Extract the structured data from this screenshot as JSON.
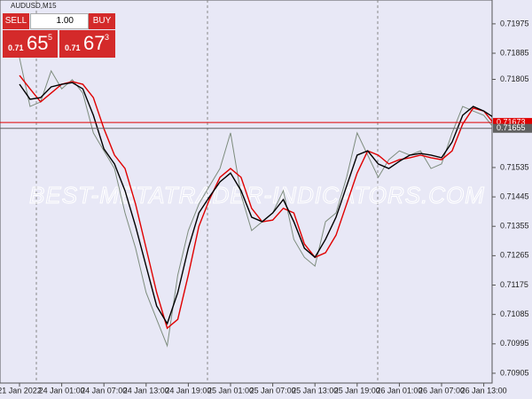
{
  "chart_data": {
    "type": "line",
    "title": "AUDUSD,M15",
    "categories": [
      "21 Jan 2022",
      null,
      null,
      null,
      "24 Jan 01:00",
      null,
      null,
      null,
      "24 Jan 07:00",
      null,
      null,
      null,
      "24 Jan 13:00",
      null,
      null,
      null,
      "24 Jan 19:00",
      null,
      null,
      null,
      "25 Jan 01:00",
      null,
      null,
      null,
      "25 Jan 07:00",
      null,
      null,
      null,
      "25 Jan 13:00",
      null,
      null,
      null,
      "25 Jan 19:00",
      null,
      null,
      null,
      "26 Jan 01:00",
      null,
      null,
      null,
      "26 Jan 07:00",
      null,
      null,
      null,
      "26 Jan 13:00",
      null
    ],
    "series": [
      {
        "color": "#7d8c7d",
        "values": [
          0.71871,
          0.71722,
          0.71736,
          0.71831,
          0.71776,
          0.71804,
          0.71763,
          0.71641,
          0.71586,
          0.71532,
          0.71396,
          0.71288,
          0.71152,
          0.7107,
          0.70989,
          0.71206,
          0.71342,
          0.71423,
          0.71478,
          0.71532,
          0.71641,
          0.71451,
          0.71342,
          0.71369,
          0.71396,
          0.71464,
          0.71315,
          0.7126,
          0.71233,
          0.71369,
          0.71396,
          0.71505,
          0.71641,
          0.71573,
          0.71505,
          0.71559,
          0.71586,
          0.71573,
          0.71586,
          0.71532,
          0.71546,
          0.71641,
          0.71722,
          0.71708,
          0.71695,
          0.71654
        ]
      },
      {
        "color": "#e00000",
        "values": [
          0.71817,
          0.71776,
          0.71736,
          0.71763,
          0.7179,
          0.71798,
          0.7179,
          0.71749,
          0.71654,
          0.71573,
          0.71532,
          0.71423,
          0.71288,
          0.71152,
          0.71043,
          0.7107,
          0.71206,
          0.71355,
          0.71437,
          0.71505,
          0.71532,
          0.71505,
          0.7141,
          0.71369,
          0.71374,
          0.7141,
          0.71396,
          0.71301,
          0.7126,
          0.71274,
          0.71328,
          0.71423,
          0.71518,
          0.71586,
          0.71573,
          0.71546,
          0.71559,
          0.71565,
          0.71573,
          0.71565,
          0.71559,
          0.71586,
          0.71668,
          0.71717,
          0.71708,
          0.71668
        ]
      },
      {
        "color": "#000000",
        "values": [
          0.7179,
          0.71744,
          0.71749,
          0.71782,
          0.7179,
          0.71795,
          0.71776,
          0.71695,
          0.71592,
          0.71546,
          0.71464,
          0.71355,
          0.71233,
          0.71111,
          0.71057,
          0.71152,
          0.71288,
          0.71396,
          0.71445,
          0.71491,
          0.71518,
          0.71464,
          0.71383,
          0.71369,
          0.71396,
          0.71437,
          0.71369,
          0.71288,
          0.7126,
          0.71315,
          0.71383,
          0.71478,
          0.71573,
          0.71586,
          0.71546,
          0.71532,
          0.71554,
          0.71573,
          0.71578,
          0.71573,
          0.71565,
          0.71613,
          0.71695,
          0.71722,
          0.71708,
          0.71687
        ]
      }
    ],
    "hlines": [
      {
        "value": 0.71673,
        "color": "#e00000"
      },
      {
        "value": 0.71655,
        "color": "#606060"
      }
    ],
    "ylim": [
      0.70875,
      0.72048
    ],
    "yticks": [
      0.71975,
      0.71885,
      0.71805,
      0.71535,
      0.71445,
      0.71355,
      0.71265,
      0.71175,
      0.71085,
      0.70995,
      0.70905
    ]
  },
  "trade_panel": {
    "sell": "SELL",
    "lot": "1.00",
    "buy": "BUY",
    "bid": {
      "big": "0.71",
      "pips": "65",
      "point": "5"
    },
    "ask": {
      "big": "0.71",
      "pips": "67",
      "point": "3"
    }
  },
  "watermark": "BEST-METATRADER-INDICATORS.COM"
}
